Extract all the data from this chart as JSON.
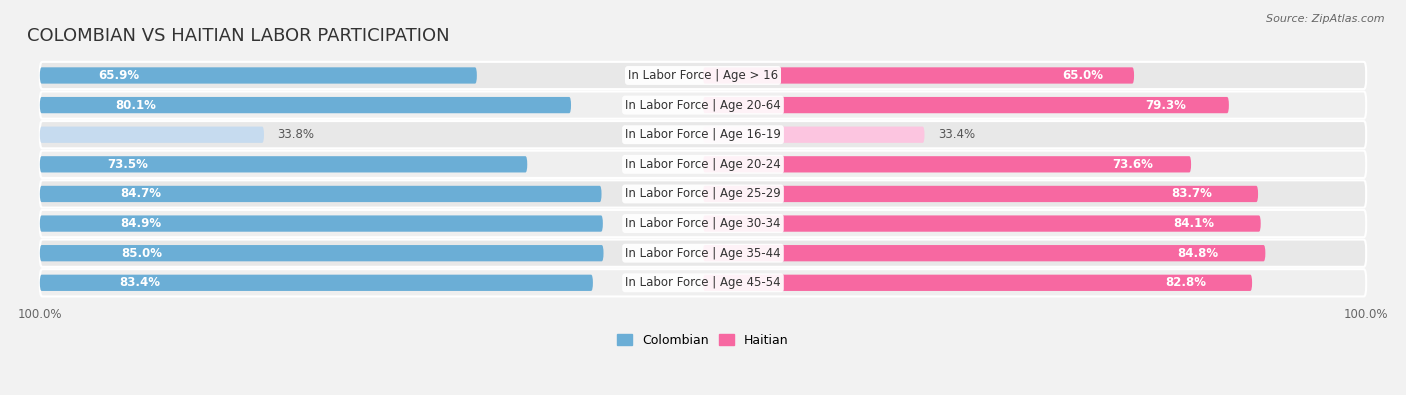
{
  "title": "COLOMBIAN VS HAITIAN LABOR PARTICIPATION",
  "source": "Source: ZipAtlas.com",
  "categories": [
    "In Labor Force | Age > 16",
    "In Labor Force | Age 20-64",
    "In Labor Force | Age 16-19",
    "In Labor Force | Age 20-24",
    "In Labor Force | Age 25-29",
    "In Labor Force | Age 30-34",
    "In Labor Force | Age 35-44",
    "In Labor Force | Age 45-54"
  ],
  "colombian_values": [
    65.9,
    80.1,
    33.8,
    73.5,
    84.7,
    84.9,
    85.0,
    83.4
  ],
  "haitian_values": [
    65.0,
    79.3,
    33.4,
    73.6,
    83.7,
    84.1,
    84.8,
    82.8
  ],
  "colombian_color": "#6BAED6",
  "haitian_color": "#F768A1",
  "colombian_color_light": "#C6DBEF",
  "haitian_color_light": "#FCC5E0",
  "background_color": "#f2f2f2",
  "row_bg_color": "#e8e8e8",
  "row_bg_alt_color": "#efefef",
  "max_value": 100.0,
  "legend_labels": [
    "Colombian",
    "Haitian"
  ],
  "title_fontsize": 13,
  "label_fontsize": 8.5,
  "value_fontsize": 8.5,
  "source_fontsize": 8
}
